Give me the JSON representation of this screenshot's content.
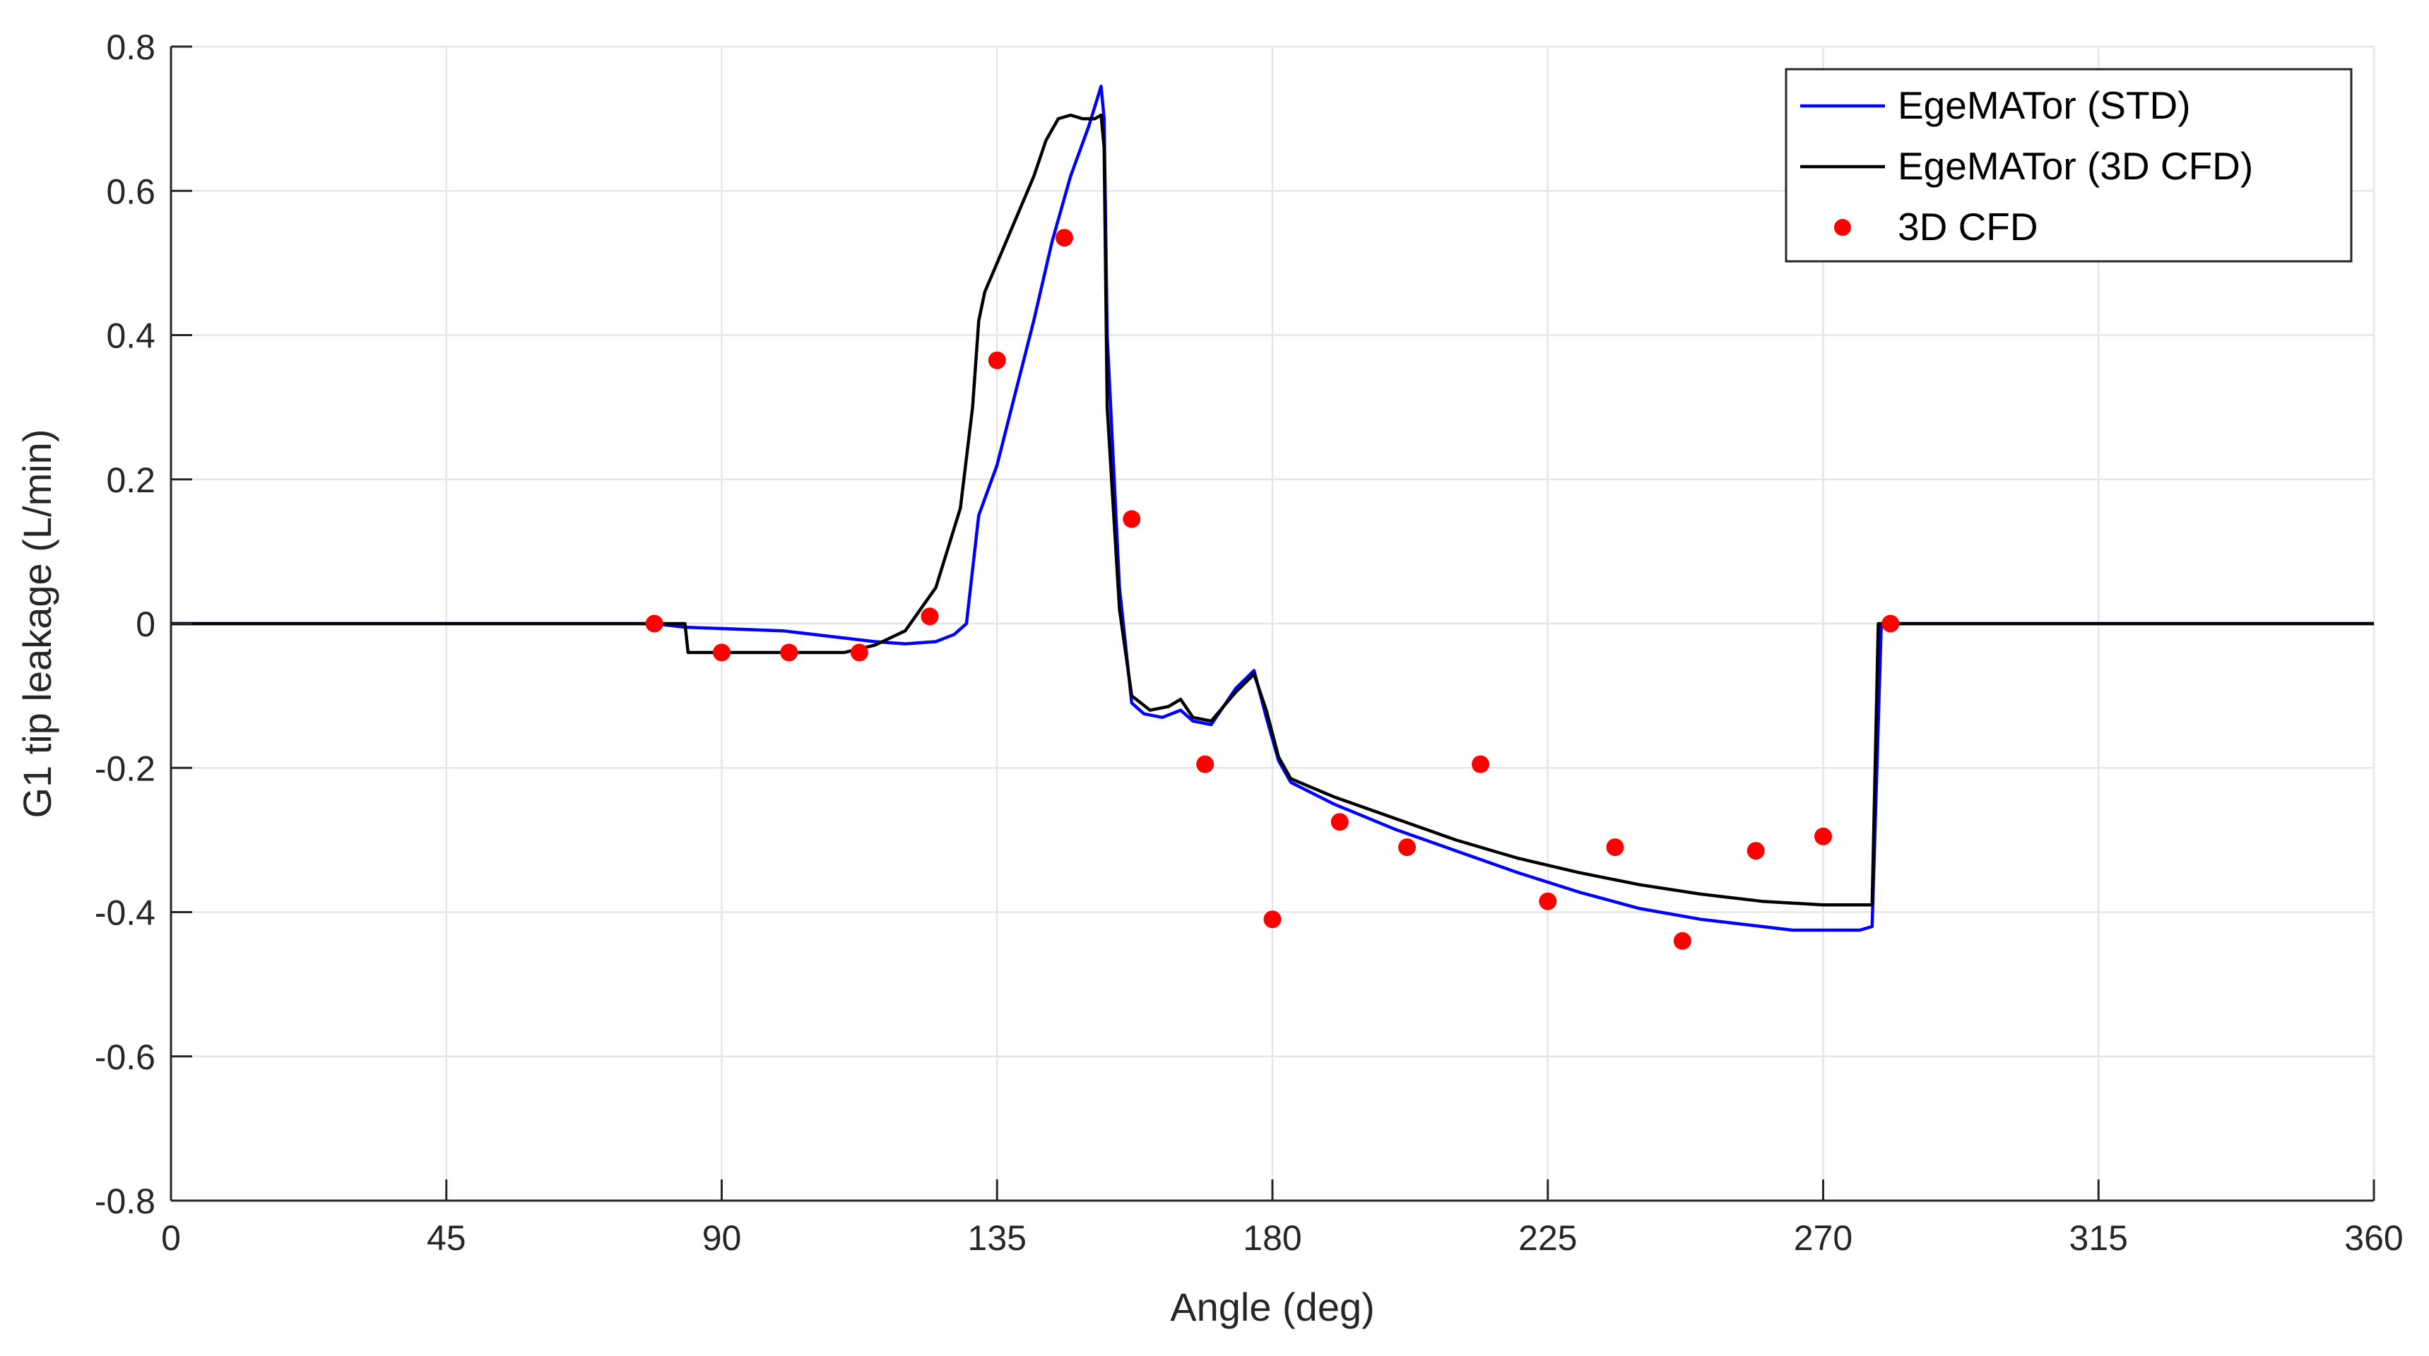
{
  "chart_data": {
    "type": "line",
    "title": "",
    "xlabel": "Angle (deg)",
    "ylabel": "G1 tip leakage (L/min)",
    "xlim": [
      0,
      360
    ],
    "ylim": [
      -0.8,
      0.8
    ],
    "xticks": [
      0,
      45,
      90,
      135,
      180,
      225,
      270,
      315,
      360
    ],
    "yticks": [
      -0.8,
      -0.6,
      -0.4,
      -0.2,
      0,
      0.2,
      0.4,
      0.6,
      0.8
    ],
    "xtick_labels": [
      "0",
      "45",
      "90",
      "135",
      "180",
      "225",
      "270",
      "315",
      "360"
    ],
    "ytick_labels": [
      "-0.8",
      "-0.6",
      "-0.4",
      "-0.2",
      "0",
      "0.2",
      "0.4",
      "0.6",
      "0.8"
    ],
    "grid": true,
    "legend_position": "top-right",
    "colors": {
      "std": "#0000FF",
      "cfd_line": "#000000",
      "cfd_points": "#FF0000",
      "grid": "#E6E6E6",
      "axis": "#262626"
    },
    "series": [
      {
        "name": "EgeMATor (STD)",
        "type": "line",
        "color": "#0000FF",
        "x": [
          0,
          79,
          84,
          100,
          110,
          115,
          120,
          125,
          128,
          130,
          132,
          135,
          138,
          141,
          144,
          147,
          150,
          152,
          152.5,
          153,
          155,
          157,
          159,
          162,
          165,
          167,
          170,
          174,
          177,
          179,
          181,
          183,
          190,
          200,
          210,
          220,
          230,
          240,
          250,
          260,
          265,
          270,
          276,
          278,
          279.5,
          360
        ],
        "y": [
          0,
          0,
          -0.005,
          -0.01,
          -0.02,
          -0.025,
          -0.028,
          -0.025,
          -0.015,
          0,
          0.15,
          0.22,
          0.32,
          0.42,
          0.53,
          0.62,
          0.69,
          0.745,
          0.7,
          0.4,
          0.05,
          -0.11,
          -0.125,
          -0.13,
          -0.12,
          -0.135,
          -0.14,
          -0.09,
          -0.065,
          -0.13,
          -0.19,
          -0.22,
          -0.25,
          -0.285,
          -0.315,
          -0.345,
          -0.372,
          -0.395,
          -0.41,
          -0.42,
          -0.425,
          -0.425,
          -0.425,
          -0.42,
          0,
          0
        ]
      },
      {
        "name": "EgeMATor (3D CFD)",
        "type": "line",
        "color": "#000000",
        "x": [
          0,
          84,
          84.5,
          100,
          110,
          115,
          120,
          125,
          129,
          131,
          132,
          133,
          135,
          138,
          141,
          143,
          145,
          147,
          149,
          151,
          152,
          152.5,
          153,
          155,
          157,
          160,
          163,
          165,
          167,
          170,
          174,
          177,
          179,
          181,
          183,
          190,
          200,
          210,
          220,
          230,
          240,
          250,
          260,
          270,
          276,
          277,
          278,
          279,
          360
        ],
        "y": [
          0,
          0,
          -0.04,
          -0.04,
          -0.04,
          -0.03,
          -0.01,
          0.05,
          0.16,
          0.3,
          0.42,
          0.46,
          0.5,
          0.56,
          0.62,
          0.67,
          0.7,
          0.705,
          0.7,
          0.7,
          0.705,
          0.66,
          0.3,
          0.02,
          -0.1,
          -0.12,
          -0.115,
          -0.105,
          -0.13,
          -0.135,
          -0.095,
          -0.07,
          -0.12,
          -0.185,
          -0.215,
          -0.24,
          -0.27,
          -0.3,
          -0.325,
          -0.345,
          -0.362,
          -0.375,
          -0.385,
          -0.39,
          -0.39,
          -0.39,
          -0.39,
          0,
          0
        ]
      },
      {
        "name": "3D CFD",
        "type": "scatter",
        "color": "#FF0000",
        "x": [
          79,
          90,
          101,
          112.5,
          124,
          135,
          146,
          157,
          169,
          180,
          191,
          202,
          214,
          225,
          236,
          247,
          259,
          270,
          281
        ],
        "y": [
          0,
          -0.04,
          -0.04,
          -0.04,
          0.01,
          0.365,
          0.535,
          0.145,
          -0.195,
          -0.41,
          -0.275,
          -0.31,
          -0.195,
          -0.385,
          -0.31,
          -0.44,
          -0.315,
          -0.295,
          0
        ]
      }
    ]
  }
}
